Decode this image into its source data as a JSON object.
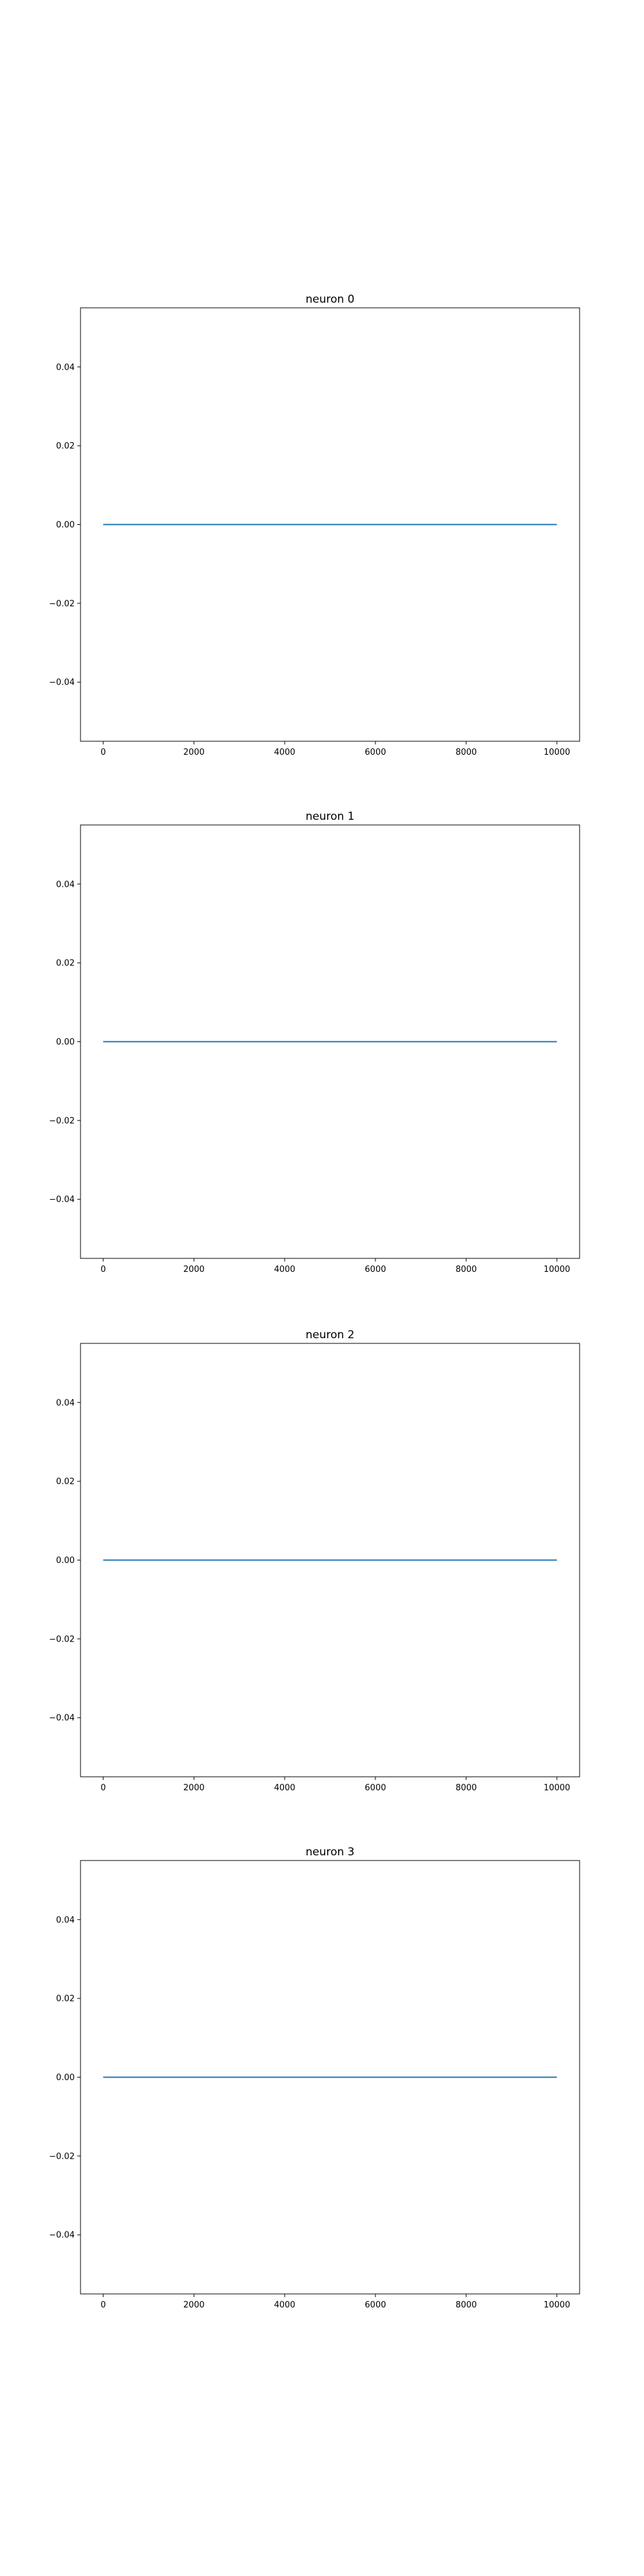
{
  "colors": {
    "series_line": "#1f77b4",
    "axes": "#000000",
    "background": "#ffffff"
  },
  "chart_data": [
    {
      "type": "line",
      "title": "neuron 0",
      "xlabel": "",
      "ylabel": "",
      "xlim": [
        -500,
        10500
      ],
      "ylim": [
        -0.055,
        0.055
      ],
      "xticks": [
        0,
        2000,
        4000,
        6000,
        8000,
        10000
      ],
      "xtick_labels": [
        "0",
        "2000",
        "4000",
        "6000",
        "8000",
        "10000"
      ],
      "yticks": [
        -0.04,
        -0.02,
        0.0,
        0.02,
        0.04
      ],
      "ytick_labels": [
        "−0.04",
        "−0.02",
        "0.00",
        "0.02",
        "0.04"
      ],
      "grid": false,
      "series": [
        {
          "x": [
            0,
            10000
          ],
          "y": [
            0.0,
            0.0
          ]
        }
      ]
    },
    {
      "type": "line",
      "title": "neuron 1",
      "xlabel": "",
      "ylabel": "",
      "xlim": [
        -500,
        10500
      ],
      "ylim": [
        -0.055,
        0.055
      ],
      "xticks": [
        0,
        2000,
        4000,
        6000,
        8000,
        10000
      ],
      "xtick_labels": [
        "0",
        "2000",
        "4000",
        "6000",
        "8000",
        "10000"
      ],
      "yticks": [
        -0.04,
        -0.02,
        0.0,
        0.02,
        0.04
      ],
      "ytick_labels": [
        "−0.04",
        "−0.02",
        "0.00",
        "0.02",
        "0.04"
      ],
      "grid": false,
      "series": [
        {
          "x": [
            0,
            10000
          ],
          "y": [
            0.0,
            0.0
          ]
        }
      ]
    },
    {
      "type": "line",
      "title": "neuron 2",
      "xlabel": "",
      "ylabel": "",
      "xlim": [
        -500,
        10500
      ],
      "ylim": [
        -0.055,
        0.055
      ],
      "xticks": [
        0,
        2000,
        4000,
        6000,
        8000,
        10000
      ],
      "xtick_labels": [
        "0",
        "2000",
        "4000",
        "6000",
        "8000",
        "10000"
      ],
      "yticks": [
        -0.04,
        -0.02,
        0.0,
        0.02,
        0.04
      ],
      "ytick_labels": [
        "−0.04",
        "−0.02",
        "0.00",
        "0.02",
        "0.04"
      ],
      "grid": false,
      "series": [
        {
          "x": [
            0,
            10000
          ],
          "y": [
            0.0,
            0.0
          ]
        }
      ]
    },
    {
      "type": "line",
      "title": "neuron 3",
      "xlabel": "",
      "ylabel": "",
      "xlim": [
        -500,
        10500
      ],
      "ylim": [
        -0.055,
        0.055
      ],
      "xticks": [
        0,
        2000,
        4000,
        6000,
        8000,
        10000
      ],
      "xtick_labels": [
        "0",
        "2000",
        "4000",
        "6000",
        "8000",
        "10000"
      ],
      "yticks": [
        -0.04,
        -0.02,
        0.0,
        0.02,
        0.04
      ],
      "ytick_labels": [
        "−0.04",
        "−0.02",
        "0.00",
        "0.02",
        "0.04"
      ],
      "grid": false,
      "series": [
        {
          "x": [
            0,
            10000
          ],
          "y": [
            0.0,
            0.0
          ]
        }
      ]
    }
  ]
}
